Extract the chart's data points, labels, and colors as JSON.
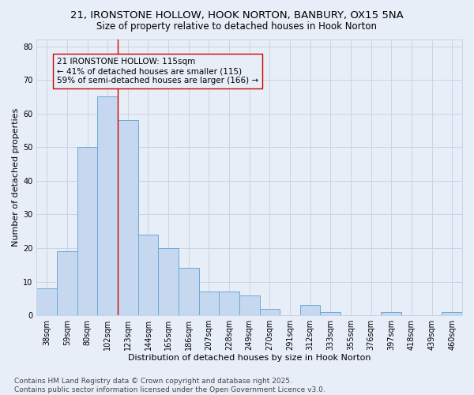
{
  "title_line1": "21, IRONSTONE HOLLOW, HOOK NORTON, BANBURY, OX15 5NA",
  "title_line2": "Size of property relative to detached houses in Hook Norton",
  "xlabel": "Distribution of detached houses by size in Hook Norton",
  "ylabel": "Number of detached properties",
  "categories": [
    "38sqm",
    "59sqm",
    "80sqm",
    "102sqm",
    "123sqm",
    "144sqm",
    "165sqm",
    "186sqm",
    "207sqm",
    "228sqm",
    "249sqm",
    "270sqm",
    "291sqm",
    "312sqm",
    "333sqm",
    "355sqm",
    "376sqm",
    "397sqm",
    "418sqm",
    "439sqm",
    "460sqm"
  ],
  "values": [
    8,
    19,
    50,
    65,
    58,
    24,
    20,
    14,
    7,
    7,
    6,
    2,
    0,
    3,
    1,
    0,
    0,
    1,
    0,
    0,
    1
  ],
  "bar_color": "#c5d8f0",
  "bar_edge_color": "#6aaad4",
  "vline_x": 3.5,
  "vline_color": "#cc0000",
  "ylim": [
    0,
    82
  ],
  "yticks": [
    0,
    10,
    20,
    30,
    40,
    50,
    60,
    70,
    80
  ],
  "grid_color": "#c8d4e8",
  "background_color": "#e8eef8",
  "footer_line1": "Contains HM Land Registry data © Crown copyright and database right 2025.",
  "footer_line2": "Contains public sector information licensed under the Open Government Licence v3.0.",
  "title_fontsize": 9.5,
  "subtitle_fontsize": 8.5,
  "axis_label_fontsize": 8,
  "tick_fontsize": 7,
  "annotation_fontsize": 7.5,
  "footer_fontsize": 6.5,
  "ann_title": "21 IRONSTONE HOLLOW: 115sqm",
  "ann_line2": "← 41% of detached houses are smaller (115)",
  "ann_line3": "59% of semi-detached houses are larger (166) →"
}
